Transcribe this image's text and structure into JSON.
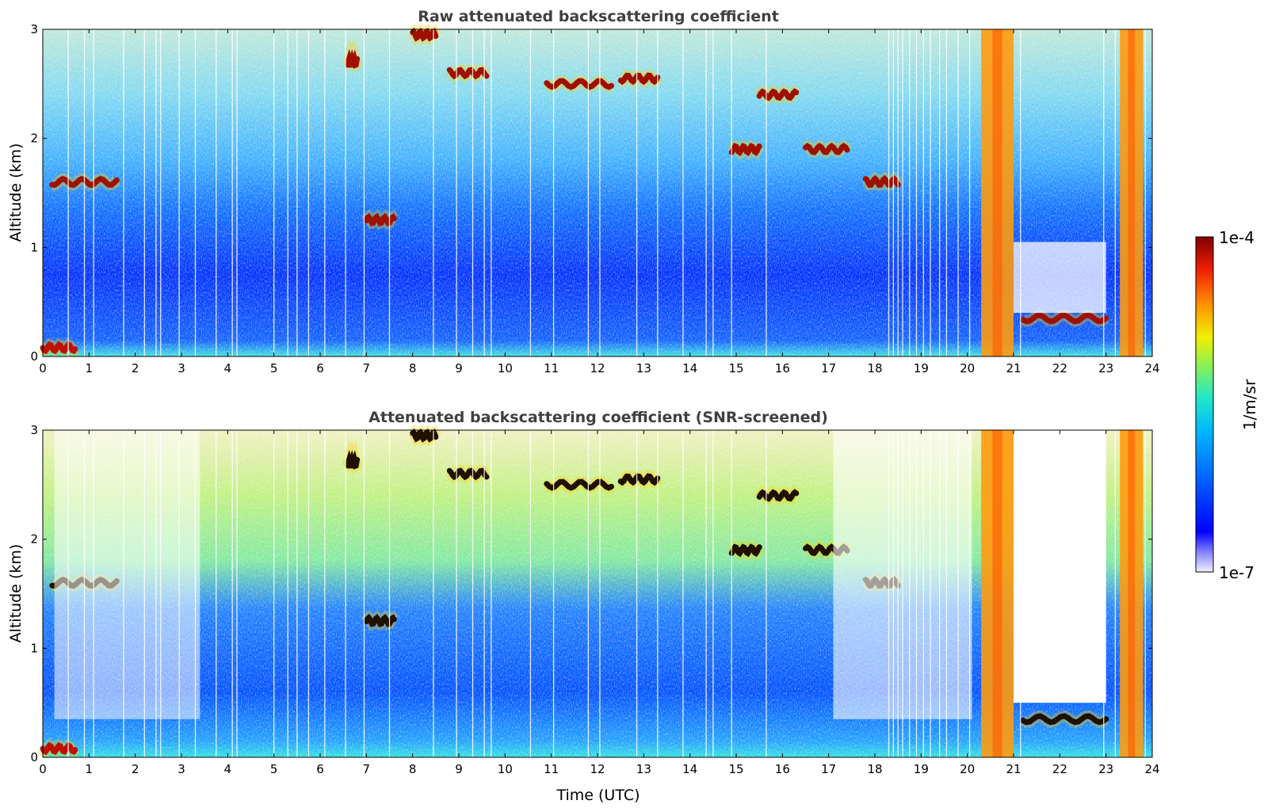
{
  "chart_data": [
    {
      "type": "heatmap",
      "title": "Raw attenuated backscattering coefficient",
      "xlabel": "",
      "ylabel": "Altitude (km)",
      "xlim": [
        0,
        24
      ],
      "ylim": [
        0,
        3
      ],
      "xticks": [
        "0",
        "1",
        "2",
        "3",
        "4",
        "5",
        "6",
        "7",
        "8",
        "9",
        "10",
        "11",
        "12",
        "13",
        "14",
        "15",
        "16",
        "17",
        "18",
        "19",
        "20",
        "21",
        "22",
        "23",
        "24"
      ],
      "yticks": [
        "0",
        "1",
        "2",
        "3"
      ],
      "scale": "log",
      "clim": [
        1e-07,
        0.0001
      ],
      "features": [
        {
          "kind": "surface_layer",
          "x": [
            0,
            0.7
          ],
          "altitude_km": 0.08
        },
        {
          "kind": "cloud",
          "x": [
            0.2,
            1.6
          ],
          "altitude_km": 1.6
        },
        {
          "kind": "cloud",
          "x": [
            6.6,
            6.8
          ],
          "altitude_km": 2.7
        },
        {
          "kind": "cloud",
          "x": [
            7.0,
            7.6
          ],
          "altitude_km": 1.25
        },
        {
          "kind": "cloud",
          "x": [
            8.0,
            8.5
          ],
          "altitude_km": 2.95
        },
        {
          "kind": "cloud",
          "x": [
            8.8,
            9.6
          ],
          "altitude_km": 2.6
        },
        {
          "kind": "cloud",
          "x": [
            10.9,
            12.3
          ],
          "altitude_km": 2.5
        },
        {
          "kind": "cloud",
          "x": [
            12.5,
            13.3
          ],
          "altitude_km": 2.55
        },
        {
          "kind": "cloud",
          "x": [
            14.9,
            15.5
          ],
          "altitude_km": 1.9
        },
        {
          "kind": "cloud",
          "x": [
            15.5,
            16.3
          ],
          "altitude_km": 2.4
        },
        {
          "kind": "cloud",
          "x": [
            16.5,
            17.4
          ],
          "altitude_km": 1.9
        },
        {
          "kind": "cloud",
          "x": [
            17.8,
            18.5
          ],
          "altitude_km": 1.6
        },
        {
          "kind": "thick_cloud",
          "x": [
            20.3,
            21.0
          ],
          "altitude_km": [
            0,
            3
          ]
        },
        {
          "kind": "cloud",
          "x": [
            21.2,
            23.0
          ],
          "altitude_km": 0.35
        },
        {
          "kind": "thick_cloud",
          "x": [
            23.3,
            23.8
          ],
          "altitude_km": [
            0,
            3
          ]
        }
      ]
    },
    {
      "type": "heatmap",
      "title": "Attenuated backscattering coefficient (SNR-screened)",
      "xlabel": "Time (UTC)",
      "ylabel": "Altitude (km)",
      "xlim": [
        0,
        24
      ],
      "ylim": [
        0,
        3
      ],
      "xticks": [
        "0",
        "1",
        "2",
        "3",
        "4",
        "5",
        "6",
        "7",
        "8",
        "9",
        "10",
        "11",
        "12",
        "13",
        "14",
        "15",
        "16",
        "17",
        "18",
        "19",
        "20",
        "21",
        "22",
        "23",
        "24"
      ],
      "yticks": [
        "0",
        "1",
        "2",
        "3"
      ],
      "scale": "log",
      "clim": [
        1e-07,
        0.0001
      ]
    }
  ],
  "colorbar": {
    "label": "1/m/sr",
    "max_label": "1e-4",
    "min_label": "1e-7",
    "colors": [
      "#f0f0ff",
      "#b8b8f5",
      "#7070ff",
      "#0000ff",
      "#0040ff",
      "#0080ff",
      "#00c0ff",
      "#20e0e0",
      "#40f0a0",
      "#a0f040",
      "#f0f000",
      "#ffc000",
      "#ff8000",
      "#ff3000",
      "#d00000",
      "#800000"
    ]
  }
}
